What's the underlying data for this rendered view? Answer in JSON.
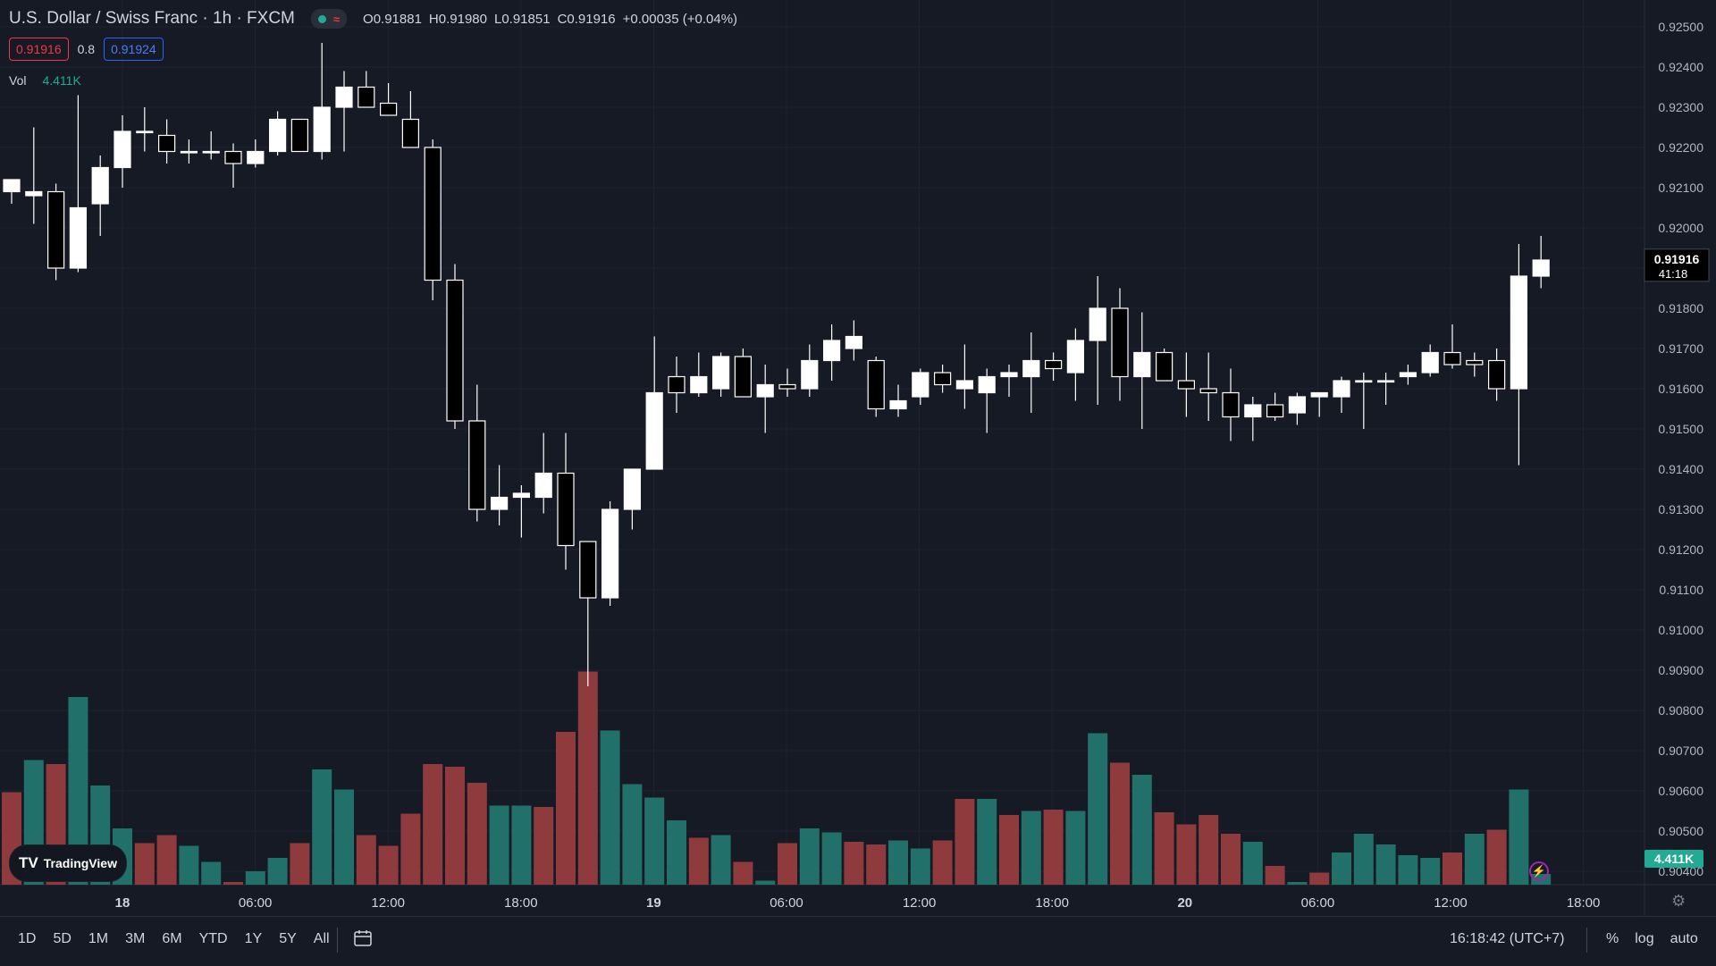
{
  "header": {
    "symbol_title": "U.S. Dollar / Swiss Franc · 1h · FXCM",
    "ohlc": {
      "o": "O0.91881",
      "h": "H0.91980",
      "l": "L0.91851",
      "c": "C0.91916",
      "chg": "+0.00035 (+0.04%)"
    },
    "sell_price": "0.91916",
    "spread": "0.8",
    "buy_price": "0.91924",
    "vol_label": "Vol",
    "vol_value": "4.411K"
  },
  "logo_text": "TradingView",
  "bottom_bar": {
    "ranges": [
      "1D",
      "5D",
      "1M",
      "3M",
      "6M",
      "YTD",
      "1Y",
      "5Y",
      "All"
    ],
    "clock": "16:18:42 (UTC+7)",
    "options": [
      "%",
      "log",
      "auto"
    ]
  },
  "colors": {
    "background": "#161a25",
    "up_body": "#ffffff",
    "down_body": "#000000",
    "vol_up": "#22706a",
    "vol_down": "#8f3a3d",
    "price_tag": "#000000",
    "vol_tag": "#22ab94"
  },
  "chart_data": {
    "type": "candlestick",
    "x_tick_labels": [
      "18",
      "06:00",
      "12:00",
      "18:00",
      "19",
      "06:00",
      "12:00",
      "18:00",
      "20",
      "06:00",
      "12:00",
      "18:00"
    ],
    "y_tick_labels": [
      "0.92500",
      "0.92400",
      "0.92300",
      "0.92200",
      "0.92100",
      "0.92000",
      "0.91900",
      "0.91800",
      "0.91700",
      "0.91600",
      "0.91500",
      "0.91400",
      "0.91300",
      "0.91200",
      "0.91100",
      "0.91000",
      "0.90900",
      "0.90800",
      "0.90700",
      "0.90600",
      "0.90500",
      "0.90400"
    ],
    "ylim": [
      0.9037,
      0.9253
    ],
    "last_price_label": "0.91916",
    "countdown_label": "41:18",
    "last_volume_label": "4.411K",
    "volume_max": 1.0,
    "candles": [
      {
        "o": 0.9209,
        "h": 0.9211,
        "l": 0.9206,
        "c": 0.9212
      },
      {
        "o": 0.9208,
        "h": 0.9225,
        "l": 0.9201,
        "c": 0.9209
      },
      {
        "o": 0.9209,
        "h": 0.9211,
        "l": 0.9187,
        "c": 0.919
      },
      {
        "o": 0.919,
        "h": 0.9233,
        "l": 0.9189,
        "c": 0.9205
      },
      {
        "o": 0.9206,
        "h": 0.9218,
        "l": 0.9198,
        "c": 0.9215
      },
      {
        "o": 0.9215,
        "h": 0.9228,
        "l": 0.921,
        "c": 0.9224
      },
      {
        "o": 0.9224,
        "h": 0.923,
        "l": 0.9219,
        "c": 0.9224
      },
      {
        "o": 0.9223,
        "h": 0.9227,
        "l": 0.9216,
        "c": 0.9219
      },
      {
        "o": 0.9219,
        "h": 0.9222,
        "l": 0.9216,
        "c": 0.9219
      },
      {
        "o": 0.9219,
        "h": 0.9224,
        "l": 0.9217,
        "c": 0.9219
      },
      {
        "o": 0.9219,
        "h": 0.9221,
        "l": 0.921,
        "c": 0.9216
      },
      {
        "o": 0.9216,
        "h": 0.9222,
        "l": 0.9215,
        "c": 0.9219
      },
      {
        "o": 0.9219,
        "h": 0.9229,
        "l": 0.9218,
        "c": 0.9227
      },
      {
        "o": 0.9227,
        "h": 0.9226,
        "l": 0.9219,
        "c": 0.9219
      },
      {
        "o": 0.9219,
        "h": 0.9246,
        "l": 0.9217,
        "c": 0.923
      },
      {
        "o": 0.923,
        "h": 0.9239,
        "l": 0.9219,
        "c": 0.9235
      },
      {
        "o": 0.9235,
        "h": 0.9239,
        "l": 0.923,
        "c": 0.923
      },
      {
        "o": 0.9231,
        "h": 0.9236,
        "l": 0.9228,
        "c": 0.9228
      },
      {
        "o": 0.9227,
        "h": 0.9234,
        "l": 0.922,
        "c": 0.922
      },
      {
        "o": 0.922,
        "h": 0.9222,
        "l": 0.9182,
        "c": 0.9187
      },
      {
        "o": 0.9187,
        "h": 0.9191,
        "l": 0.915,
        "c": 0.9152
      },
      {
        "o": 0.9152,
        "h": 0.9161,
        "l": 0.9127,
        "c": 0.913
      },
      {
        "o": 0.913,
        "h": 0.9141,
        "l": 0.9126,
        "c": 0.9133
      },
      {
        "o": 0.9133,
        "h": 0.9136,
        "l": 0.9123,
        "c": 0.9134
      },
      {
        "o": 0.9133,
        "h": 0.9149,
        "l": 0.9129,
        "c": 0.9139
      },
      {
        "o": 0.9139,
        "h": 0.9149,
        "l": 0.9115,
        "c": 0.9121
      },
      {
        "o": 0.9122,
        "h": 0.9122,
        "l": 0.9086,
        "c": 0.9108
      },
      {
        "o": 0.9108,
        "h": 0.9132,
        "l": 0.9106,
        "c": 0.913
      },
      {
        "o": 0.913,
        "h": 0.9138,
        "l": 0.9125,
        "c": 0.914
      },
      {
        "o": 0.914,
        "h": 0.9173,
        "l": 0.914,
        "c": 0.9159
      },
      {
        "o": 0.9163,
        "h": 0.9168,
        "l": 0.9154,
        "c": 0.9159
      },
      {
        "o": 0.9159,
        "h": 0.9169,
        "l": 0.9158,
        "c": 0.9163
      },
      {
        "o": 0.916,
        "h": 0.9169,
        "l": 0.9158,
        "c": 0.9168
      },
      {
        "o": 0.9168,
        "h": 0.917,
        "l": 0.916,
        "c": 0.9158
      },
      {
        "o": 0.9158,
        "h": 0.9166,
        "l": 0.9149,
        "c": 0.9161
      },
      {
        "o": 0.9161,
        "h": 0.9165,
        "l": 0.9158,
        "c": 0.916
      },
      {
        "o": 0.916,
        "h": 0.9171,
        "l": 0.9158,
        "c": 0.9167
      },
      {
        "o": 0.9167,
        "h": 0.9176,
        "l": 0.9162,
        "c": 0.9172
      },
      {
        "o": 0.917,
        "h": 0.9177,
        "l": 0.9167,
        "c": 0.9173
      },
      {
        "o": 0.9167,
        "h": 0.9168,
        "l": 0.9153,
        "c": 0.9155
      },
      {
        "o": 0.9155,
        "h": 0.9161,
        "l": 0.9153,
        "c": 0.9157
      },
      {
        "o": 0.9158,
        "h": 0.9165,
        "l": 0.9156,
        "c": 0.9164
      },
      {
        "o": 0.9164,
        "h": 0.9166,
        "l": 0.9159,
        "c": 0.9161
      },
      {
        "o": 0.916,
        "h": 0.9171,
        "l": 0.9155,
        "c": 0.9162
      },
      {
        "o": 0.9159,
        "h": 0.9165,
        "l": 0.9149,
        "c": 0.9163
      },
      {
        "o": 0.9163,
        "h": 0.9166,
        "l": 0.9158,
        "c": 0.9164
      },
      {
        "o": 0.9163,
        "h": 0.9174,
        "l": 0.9154,
        "c": 0.9167
      },
      {
        "o": 0.9167,
        "h": 0.9169,
        "l": 0.9162,
        "c": 0.9165
      },
      {
        "o": 0.9164,
        "h": 0.9175,
        "l": 0.9157,
        "c": 0.9172
      },
      {
        "o": 0.9172,
        "h": 0.9188,
        "l": 0.9156,
        "c": 0.918
      },
      {
        "o": 0.918,
        "h": 0.9185,
        "l": 0.9157,
        "c": 0.9163
      },
      {
        "o": 0.9163,
        "h": 0.9179,
        "l": 0.915,
        "c": 0.9169
      },
      {
        "o": 0.9169,
        "h": 0.917,
        "l": 0.9162,
        "c": 0.9162
      },
      {
        "o": 0.9162,
        "h": 0.9169,
        "l": 0.9153,
        "c": 0.916
      },
      {
        "o": 0.916,
        "h": 0.9169,
        "l": 0.9152,
        "c": 0.9159
      },
      {
        "o": 0.9159,
        "h": 0.9165,
        "l": 0.9147,
        "c": 0.9153
      },
      {
        "o": 0.9153,
        "h": 0.9158,
        "l": 0.9147,
        "c": 0.9156
      },
      {
        "o": 0.9156,
        "h": 0.9159,
        "l": 0.9152,
        "c": 0.9153
      },
      {
        "o": 0.9154,
        "h": 0.9159,
        "l": 0.9151,
        "c": 0.9158
      },
      {
        "o": 0.9158,
        "h": 0.9159,
        "l": 0.9153,
        "c": 0.9159
      },
      {
        "o": 0.9158,
        "h": 0.9163,
        "l": 0.9154,
        "c": 0.9162
      },
      {
        "o": 0.9162,
        "h": 0.9164,
        "l": 0.915,
        "c": 0.9162
      },
      {
        "o": 0.9162,
        "h": 0.9164,
        "l": 0.9156,
        "c": 0.9162
      },
      {
        "o": 0.9163,
        "h": 0.9166,
        "l": 0.9161,
        "c": 0.9164
      },
      {
        "o": 0.9164,
        "h": 0.9171,
        "l": 0.9163,
        "c": 0.9169
      },
      {
        "o": 0.9169,
        "h": 0.9176,
        "l": 0.9165,
        "c": 0.9166
      },
      {
        "o": 0.9167,
        "h": 0.9169,
        "l": 0.9163,
        "c": 0.9166
      },
      {
        "o": 0.9167,
        "h": 0.917,
        "l": 0.9157,
        "c": 0.916
      },
      {
        "o": 0.916,
        "h": 0.9196,
        "l": 0.9141,
        "c": 0.9188
      },
      {
        "o": 0.9188,
        "h": 0.9198,
        "l": 0.9185,
        "c": 0.9192
      }
    ],
    "volumes": [
      {
        "v": 0.69,
        "up": false
      },
      {
        "v": 0.93,
        "up": true
      },
      {
        "v": 0.9,
        "up": false
      },
      {
        "v": 1.4,
        "up": true
      },
      {
        "v": 0.74,
        "up": true
      },
      {
        "v": 0.42,
        "up": true
      },
      {
        "v": 0.31,
        "up": false
      },
      {
        "v": 0.37,
        "up": false
      },
      {
        "v": 0.29,
        "up": true
      },
      {
        "v": 0.17,
        "up": true
      },
      {
        "v": 0.02,
        "up": false
      },
      {
        "v": 0.1,
        "up": true
      },
      {
        "v": 0.2,
        "up": true
      },
      {
        "v": 0.31,
        "up": false
      },
      {
        "v": 0.86,
        "up": true
      },
      {
        "v": 0.71,
        "up": true
      },
      {
        "v": 0.37,
        "up": false
      },
      {
        "v": 0.29,
        "up": false
      },
      {
        "v": 0.53,
        "up": false
      },
      {
        "v": 0.9,
        "up": false
      },
      {
        "v": 0.88,
        "up": false
      },
      {
        "v": 0.76,
        "up": false
      },
      {
        "v": 0.59,
        "up": true
      },
      {
        "v": 0.59,
        "up": true
      },
      {
        "v": 0.58,
        "up": false
      },
      {
        "v": 1.14,
        "up": false
      },
      {
        "v": 1.59,
        "up": false
      },
      {
        "v": 1.15,
        "up": true
      },
      {
        "v": 0.75,
        "up": true
      },
      {
        "v": 0.65,
        "up": true
      },
      {
        "v": 0.48,
        "up": true
      },
      {
        "v": 0.35,
        "up": false
      },
      {
        "v": 0.37,
        "up": true
      },
      {
        "v": 0.17,
        "up": false
      },
      {
        "v": 0.03,
        "up": true
      },
      {
        "v": 0.31,
        "up": false
      },
      {
        "v": 0.42,
        "up": true
      },
      {
        "v": 0.39,
        "up": true
      },
      {
        "v": 0.32,
        "up": false
      },
      {
        "v": 0.3,
        "up": false
      },
      {
        "v": 0.33,
        "up": true
      },
      {
        "v": 0.27,
        "up": true
      },
      {
        "v": 0.33,
        "up": false
      },
      {
        "v": 0.64,
        "up": false
      },
      {
        "v": 0.64,
        "up": true
      },
      {
        "v": 0.52,
        "up": false
      },
      {
        "v": 0.55,
        "up": true
      },
      {
        "v": 0.56,
        "up": false
      },
      {
        "v": 0.55,
        "up": true
      },
      {
        "v": 1.13,
        "up": true
      },
      {
        "v": 0.91,
        "up": false
      },
      {
        "v": 0.82,
        "up": true
      },
      {
        "v": 0.54,
        "up": false
      },
      {
        "v": 0.45,
        "up": false
      },
      {
        "v": 0.52,
        "up": false
      },
      {
        "v": 0.38,
        "up": false
      },
      {
        "v": 0.32,
        "up": true
      },
      {
        "v": 0.14,
        "up": false
      },
      {
        "v": 0.02,
        "up": true
      },
      {
        "v": 0.09,
        "up": false
      },
      {
        "v": 0.24,
        "up": true
      },
      {
        "v": 0.38,
        "up": true
      },
      {
        "v": 0.3,
        "up": true
      },
      {
        "v": 0.22,
        "up": true
      },
      {
        "v": 0.2,
        "up": true
      },
      {
        "v": 0.24,
        "up": false
      },
      {
        "v": 0.38,
        "up": true
      },
      {
        "v": 0.41,
        "up": false
      },
      {
        "v": 0.71,
        "up": true
      },
      {
        "v": 0.08,
        "up": true
      }
    ]
  }
}
